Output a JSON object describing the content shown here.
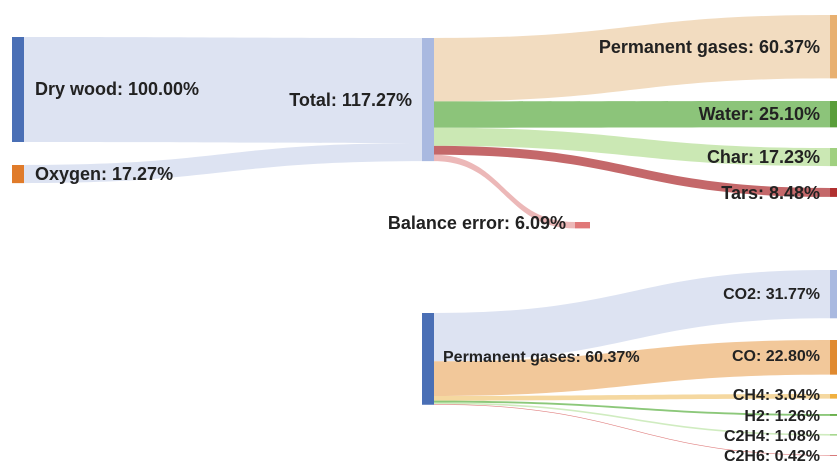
{
  "chart_data": [
    {
      "type": "sankey",
      "nodes": [
        {
          "label": "Dry wood: 100.00%",
          "value": 100,
          "color": "#4a6fb5"
        },
        {
          "label": "Oxygen: 17.27%",
          "value": 17.27,
          "color": "#e07b2a"
        },
        {
          "label": "Total: 117.27%",
          "value": 117.27,
          "color": "#a9b9e0"
        },
        {
          "label": "Permanent gases: 60.37%",
          "value": 60.37,
          "color": "#e8b070"
        },
        {
          "label": "Water: 25.10%",
          "value": 25.1,
          "color": "#5a9e3a"
        },
        {
          "label": "Char: 17.23%",
          "value": 17.23,
          "color": "#a0d080"
        },
        {
          "label": "Tars: 8.48%",
          "value": 8.48,
          "color": "#b03030"
        },
        {
          "label": "Balance error: 6.09%",
          "value": 6.09,
          "color": "#e07878"
        }
      ],
      "links": [
        {
          "source": 0,
          "target": 2,
          "value": 100,
          "color": "#dde3f2"
        },
        {
          "source": 1,
          "target": 2,
          "value": 17.27,
          "color": "#dde3f2"
        },
        {
          "source": 2,
          "target": 3,
          "value": 60.37,
          "color": "#f2dcc0"
        },
        {
          "source": 2,
          "target": 4,
          "value": 25.1,
          "color": "#8cc47a"
        },
        {
          "source": 2,
          "target": 5,
          "value": 17.23,
          "color": "#cbe8b4"
        },
        {
          "source": 2,
          "target": 6,
          "value": 8.48,
          "color": "#c4686a"
        },
        {
          "source": 2,
          "target": 7,
          "value": 6.09,
          "color": "#ecb8b8"
        }
      ]
    },
    {
      "type": "sankey",
      "nodes": [
        {
          "label": "Permanent gases: 60.37%",
          "value": 60.37,
          "color": "#4a6fb5"
        },
        {
          "label": "CO2: 31.77%",
          "value": 31.77,
          "color": "#a9b9e0"
        },
        {
          "label": "CO: 22.80%",
          "value": 22.8,
          "color": "#e08a30"
        },
        {
          "label": "CH4: 3.04%",
          "value": 3.04,
          "color": "#f0b040"
        },
        {
          "label": "H2: 1.26%",
          "value": 1.26,
          "color": "#6ab04c"
        },
        {
          "label": "C2H4: 1.08%",
          "value": 1.08,
          "color": "#a8d890"
        },
        {
          "label": "C2H6: 0.42%",
          "value": 0.42,
          "color": "#c03030"
        }
      ],
      "links": [
        {
          "source": 0,
          "target": 1,
          "value": 31.77,
          "color": "#dde3f2"
        },
        {
          "source": 0,
          "target": 2,
          "value": 22.8,
          "color": "#f2c89a"
        },
        {
          "source": 0,
          "target": 3,
          "value": 3.04,
          "color": "#f5d8a0"
        },
        {
          "source": 0,
          "target": 4,
          "value": 1.26,
          "color": "#8cc87a"
        },
        {
          "source": 0,
          "target": 5,
          "value": 1.08,
          "color": "#d0ecc0"
        },
        {
          "source": 0,
          "target": 6,
          "value": 0.42,
          "color": "#e08080"
        }
      ]
    }
  ]
}
